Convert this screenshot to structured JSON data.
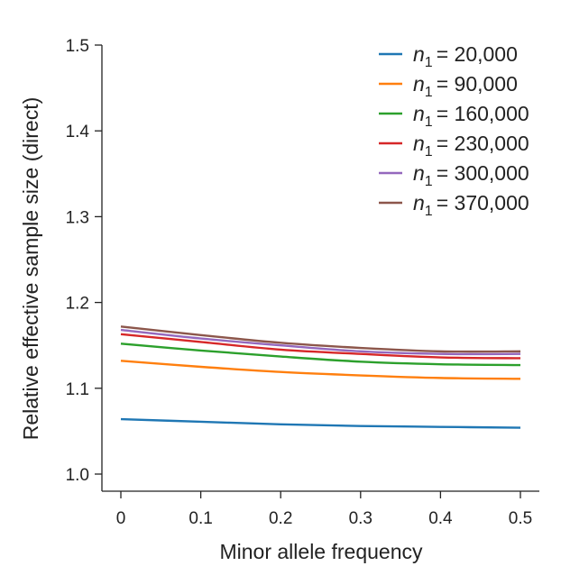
{
  "chart_data": {
    "type": "line",
    "title": "",
    "xlabel": "Minor allele frequency",
    "ylabel": "Relative effective sample size (direct)",
    "xlim": [
      0,
      0.5
    ],
    "ylim": [
      1.0,
      1.5
    ],
    "xticks": [
      "0",
      "0.1",
      "0.2",
      "0.3",
      "0.4",
      "0.5"
    ],
    "yticks": [
      "1.0",
      "1.1",
      "1.2",
      "1.3",
      "1.4",
      "1.5"
    ],
    "legend_position": "top-right",
    "legend_prefix": "n",
    "legend_subscript": "1",
    "x": [
      0,
      0.1,
      0.2,
      0.3,
      0.4,
      0.5
    ],
    "series": [
      {
        "name": "= 20,000",
        "color": "#1f77b4",
        "values": [
          1.064,
          1.061,
          1.058,
          1.056,
          1.055,
          1.054
        ]
      },
      {
        "name": "= 90,000",
        "color": "#ff7f0e",
        "values": [
          1.132,
          1.125,
          1.119,
          1.115,
          1.112,
          1.111
        ]
      },
      {
        "name": "= 160,000",
        "color": "#2ca02c",
        "values": [
          1.152,
          1.144,
          1.137,
          1.131,
          1.128,
          1.127
        ]
      },
      {
        "name": "= 230,000",
        "color": "#d62728",
        "values": [
          1.163,
          1.154,
          1.145,
          1.14,
          1.136,
          1.135
        ]
      },
      {
        "name": "= 300,000",
        "color": "#9467bd",
        "values": [
          1.168,
          1.158,
          1.15,
          1.143,
          1.14,
          1.14
        ]
      },
      {
        "name": "= 370,000",
        "color": "#8c564b",
        "values": [
          1.172,
          1.162,
          1.153,
          1.147,
          1.143,
          1.143
        ]
      }
    ]
  }
}
